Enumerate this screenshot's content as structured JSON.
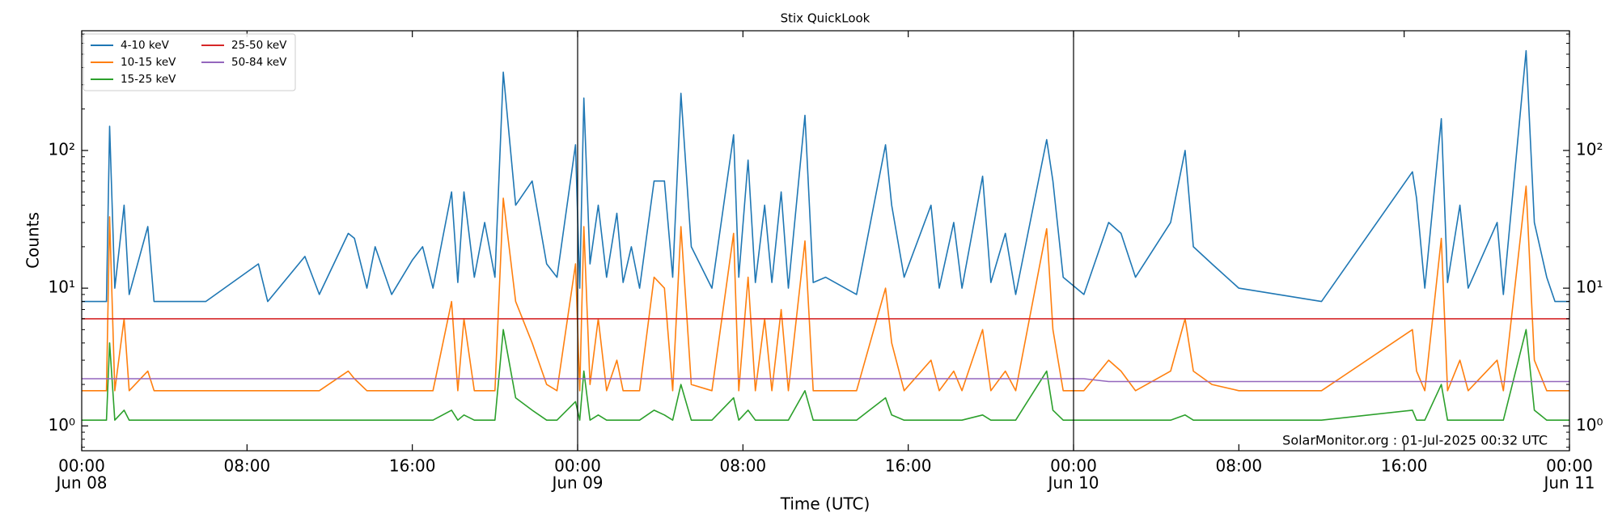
{
  "chart_data": {
    "type": "line",
    "title": "Stix QuickLook",
    "xlabel": "Time (UTC)",
    "ylabel": "Counts",
    "annotation": "SolarMonitor.org : 01-Jul-2025 00:32 UTC",
    "log_y": true,
    "legend": {
      "loc": "upper left",
      "columns": 2
    },
    "xlim": [
      "Jun 08 00:00",
      "Jun 11 00:00"
    ],
    "xticks": [
      {
        "value": "Jun 08 00:00",
        "label": [
          "00:00",
          "Jun 08"
        ]
      },
      {
        "value": "Jun 08 08:00",
        "label": "08:00"
      },
      {
        "value": "Jun 08 16:00",
        "label": "16:00"
      },
      {
        "value": "Jun 09 00:00",
        "label": [
          "00:00",
          "Jun 09"
        ]
      },
      {
        "value": "Jun 09 08:00",
        "label": "08:00"
      },
      {
        "value": "Jun 09 16:00",
        "label": "16:00"
      },
      {
        "value": "Jun 10 00:00",
        "label": [
          "00:00",
          "Jun 10"
        ]
      },
      {
        "value": "Jun 10 08:00",
        "label": "08:00"
      },
      {
        "value": "Jun 10 16:00",
        "label": "16:00"
      },
      {
        "value": "Jun 11 00:00",
        "label": [
          "00:00",
          "Jun 11"
        ]
      }
    ],
    "ylim": [
      0.66,
      740
    ],
    "yticks": [
      {
        "value": 1,
        "label": "10⁰"
      },
      {
        "value": 10,
        "label": "10¹"
      },
      {
        "value": 100,
        "label": "10²"
      }
    ],
    "yminorticks": [
      0.7,
      0.8,
      0.9,
      2,
      3,
      4,
      5,
      6,
      7,
      8,
      9,
      20,
      30,
      40,
      50,
      60,
      70,
      80,
      90,
      200,
      300,
      400,
      500,
      600,
      700
    ],
    "x": [
      "Jun 08 00:00",
      "Jun 08 01:12",
      "Jun 08 01:21",
      "Jun 08 01:36",
      "Jun 08 02:03",
      "Jun 08 02:18",
      "Jun 08 03:12",
      "Jun 08 03:30",
      "Jun 08 06:00",
      "Jun 08 08:33",
      "Jun 08 09:00",
      "Jun 08 10:48",
      "Jun 08 11:30",
      "Jun 08 12:54",
      "Jun 08 13:12",
      "Jun 08 13:48",
      "Jun 08 14:12",
      "Jun 08 15:00",
      "Jun 08 16:00",
      "Jun 08 16:30",
      "Jun 08 17:00",
      "Jun 08 17:54",
      "Jun 08 18:12",
      "Jun 08 18:30",
      "Jun 08 19:00",
      "Jun 08 19:30",
      "Jun 08 20:00",
      "Jun 08 20:24",
      "Jun 08 21:00",
      "Jun 08 21:48",
      "Jun 08 22:30",
      "Jun 08 23:00",
      "Jun 08 23:54",
      "Jun 09 00:06",
      "Jun 09 00:18",
      "Jun 09 00:36",
      "Jun 09 01:00",
      "Jun 09 01:24",
      "Jun 09 01:54",
      "Jun 09 02:12",
      "Jun 09 02:36",
      "Jun 09 03:00",
      "Jun 09 03:42",
      "Jun 09 04:12",
      "Jun 09 04:36",
      "Jun 09 05:00",
      "Jun 09 05:30",
      "Jun 09 06:30",
      "Jun 09 07:33",
      "Jun 09 07:48",
      "Jun 09 08:15",
      "Jun 09 08:36",
      "Jun 09 09:03",
      "Jun 09 09:24",
      "Jun 09 09:51",
      "Jun 09 10:12",
      "Jun 09 11:00",
      "Jun 09 11:24",
      "Jun 09 12:00",
      "Jun 09 13:30",
      "Jun 09 14:54",
      "Jun 09 15:12",
      "Jun 09 15:48",
      "Jun 09 17:06",
      "Jun 09 17:30",
      "Jun 09 18:12",
      "Jun 09 18:36",
      "Jun 09 19:36",
      "Jun 09 20:00",
      "Jun 09 20:42",
      "Jun 09 21:12",
      "Jun 09 22:42",
      "Jun 09 23:00",
      "Jun 09 23:30",
      "Jun 10 00:30",
      "Jun 10 01:42",
      "Jun 10 02:18",
      "Jun 10 03:00",
      "Jun 10 04:42",
      "Jun 10 05:24",
      "Jun 10 05:48",
      "Jun 10 06:42",
      "Jun 10 08:00",
      "Jun 10 12:00",
      "Jun 10 16:24",
      "Jun 10 16:36",
      "Jun 10 17:00",
      "Jun 10 17:48",
      "Jun 10 18:06",
      "Jun 10 18:42",
      "Jun 10 19:06",
      "Jun 10 20:30",
      "Jun 10 20:48",
      "Jun 10 21:54",
      "Jun 10 22:18",
      "Jun 10 22:54",
      "Jun 10 23:18",
      "Jun 11 00:00"
    ],
    "series": [
      {
        "name": "4-10 keV",
        "color": "#1f77b4",
        "values": [
          8,
          8,
          150,
          10,
          40,
          9,
          28,
          8,
          8,
          15,
          8,
          17,
          9,
          25,
          23,
          10,
          20,
          9,
          16,
          20,
          10,
          50,
          11,
          50,
          12,
          30,
          12,
          370,
          40,
          60,
          15,
          12,
          110,
          10,
          240,
          15,
          40,
          12,
          35,
          11,
          20,
          10,
          60,
          60,
          12,
          260,
          20,
          10,
          130,
          12,
          85,
          11,
          40,
          11,
          50,
          10,
          180,
          11,
          12,
          9,
          110,
          40,
          12,
          40,
          10,
          30,
          10,
          65,
          11,
          25,
          9,
          120,
          60,
          12,
          9,
          30,
          25,
          12,
          30,
          100,
          20,
          15,
          10,
          8,
          70,
          45,
          10,
          170,
          11,
          40,
          10,
          30,
          9,
          530,
          30,
          12,
          8,
          8
        ]
      },
      {
        "name": "10-15 keV",
        "color": "#ff7f0e",
        "values": [
          1.8,
          1.8,
          33,
          1.8,
          6,
          1.8,
          2.5,
          1.8,
          1.8,
          1.8,
          1.8,
          1.8,
          1.8,
          2.5,
          2.2,
          1.8,
          1.8,
          1.8,
          1.8,
          1.8,
          1.8,
          8,
          1.8,
          6,
          1.8,
          1.8,
          1.8,
          45,
          8,
          4,
          2,
          1.8,
          15,
          1.8,
          28,
          2,
          6,
          1.8,
          3,
          1.8,
          1.8,
          1.8,
          12,
          10,
          1.8,
          28,
          2,
          1.8,
          25,
          1.8,
          12,
          1.8,
          6,
          1.8,
          7,
          1.8,
          22,
          1.8,
          1.8,
          1.8,
          10,
          4,
          1.8,
          3,
          1.8,
          2.5,
          1.8,
          5,
          1.8,
          2.5,
          1.8,
          27,
          5,
          1.8,
          1.8,
          3,
          2.5,
          1.8,
          2.5,
          6,
          2.5,
          2,
          1.8,
          1.8,
          5,
          2.5,
          1.8,
          23,
          1.8,
          3,
          1.8,
          3,
          1.8,
          55,
          3,
          1.8,
          1.8,
          1.8
        ]
      },
      {
        "name": "15-25 keV",
        "color": "#2ca02c",
        "values": [
          1.1,
          1.1,
          4,
          1.1,
          1.3,
          1.1,
          1.1,
          1.1,
          1.1,
          1.1,
          1.1,
          1.1,
          1.1,
          1.1,
          1.1,
          1.1,
          1.1,
          1.1,
          1.1,
          1.1,
          1.1,
          1.3,
          1.1,
          1.2,
          1.1,
          1.1,
          1.1,
          5,
          1.6,
          1.3,
          1.1,
          1.1,
          1.5,
          1.1,
          2.5,
          1.1,
          1.2,
          1.1,
          1.1,
          1.1,
          1.1,
          1.1,
          1.3,
          1.2,
          1.1,
          2,
          1.1,
          1.1,
          1.6,
          1.1,
          1.3,
          1.1,
          1.1,
          1.1,
          1.1,
          1.1,
          1.8,
          1.1,
          1.1,
          1.1,
          1.6,
          1.2,
          1.1,
          1.1,
          1.1,
          1.1,
          1.1,
          1.2,
          1.1,
          1.1,
          1.1,
          2.5,
          1.3,
          1.1,
          1.1,
          1.1,
          1.1,
          1.1,
          1.1,
          1.2,
          1.1,
          1.1,
          1.1,
          1.1,
          1.3,
          1.1,
          1.1,
          2,
          1.1,
          1.1,
          1.1,
          1.1,
          1.1,
          5,
          1.3,
          1.1,
          1.1,
          1.1
        ]
      },
      {
        "name": "25-50 keV",
        "color": "#d62728",
        "values": [
          6,
          6,
          6,
          6,
          6,
          6,
          6,
          6,
          6,
          6,
          6,
          6,
          6,
          6,
          6,
          6,
          6,
          6,
          6,
          6,
          6,
          6,
          6,
          6,
          6,
          6,
          6,
          6,
          6,
          6,
          6,
          6,
          6,
          6,
          6,
          6,
          6,
          6,
          6,
          6,
          6,
          6,
          6,
          6,
          6,
          6,
          6,
          6,
          6,
          6,
          6,
          6,
          6,
          6,
          6,
          6,
          6,
          6,
          6,
          6,
          6,
          6,
          6,
          6,
          6,
          6,
          6,
          6,
          6,
          6,
          6,
          6,
          6,
          6,
          6,
          6,
          6,
          6,
          6,
          6,
          6,
          6,
          6,
          6,
          6,
          6,
          6,
          6,
          6,
          6,
          6,
          6,
          6,
          6,
          6,
          6,
          6,
          6
        ]
      },
      {
        "name": "50-84 keV",
        "color": "#9467bd",
        "values": [
          2.2,
          2.2,
          2.2,
          2.2,
          2.2,
          2.2,
          2.2,
          2.2,
          2.2,
          2.2,
          2.2,
          2.2,
          2.2,
          2.2,
          2.2,
          2.2,
          2.2,
          2.2,
          2.2,
          2.2,
          2.2,
          2.2,
          2.2,
          2.2,
          2.2,
          2.2,
          2.2,
          2.2,
          2.2,
          2.2,
          2.2,
          2.2,
          2.2,
          2.2,
          2.2,
          2.2,
          2.2,
          2.2,
          2.2,
          2.2,
          2.2,
          2.2,
          2.2,
          2.2,
          2.2,
          2.2,
          2.2,
          2.2,
          2.2,
          2.2,
          2.2,
          2.2,
          2.2,
          2.2,
          2.2,
          2.2,
          2.2,
          2.2,
          2.2,
          2.2,
          2.2,
          2.2,
          2.2,
          2.2,
          2.2,
          2.2,
          2.2,
          2.2,
          2.2,
          2.2,
          2.2,
          2.2,
          2.2,
          2.2,
          2.2,
          2.1,
          2.1,
          2.1,
          2.1,
          2.1,
          2.1,
          2.1,
          2.1,
          2.1,
          2.1,
          2.1,
          2.1,
          2.1,
          2.1,
          2.1,
          2.1,
          2.1,
          2.1,
          2.1,
          2.1,
          2.1,
          2.1,
          2.1
        ]
      }
    ]
  }
}
